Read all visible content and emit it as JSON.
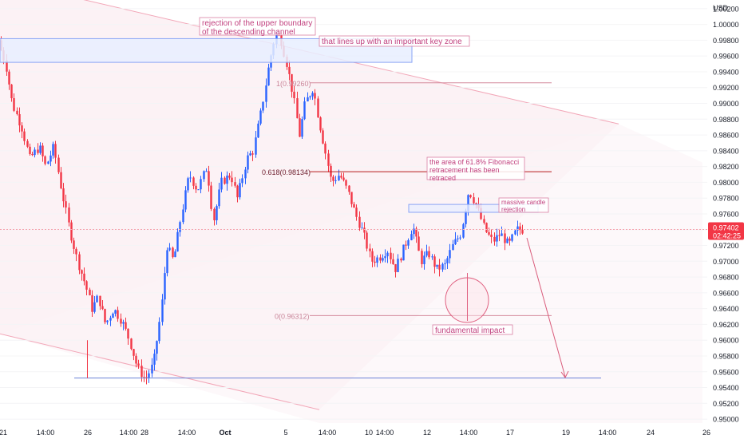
{
  "chart_data": {
    "type": "candlestick",
    "currency_label": "USD",
    "y_ticks": [
      "1.00200",
      "1.00000",
      "0.99800",
      "0.99600",
      "0.99400",
      "0.99200",
      "0.99000",
      "0.98800",
      "0.98600",
      "0.98400",
      "0.98200",
      "0.98000",
      "0.97800",
      "0.97600",
      "0.97400",
      "0.97200",
      "0.97000",
      "0.96800",
      "0.96600",
      "0.96400",
      "0.96200",
      "0.96000",
      "0.95800",
      "0.95600",
      "0.95400",
      "0.95200",
      "0.95000"
    ],
    "ylim": [
      0.9492,
      1.0034
    ],
    "x_ticks": [
      "21",
      "14:00",
      "26",
      "14:00",
      "28",
      "14:00",
      "Oct",
      "5",
      "14:00",
      "10",
      "14:00",
      "12",
      "14:00",
      "17",
      "19",
      "14:00",
      "24",
      "26"
    ],
    "current_price": {
      "value": 0.97402,
      "label": "0.97402",
      "countdown": "02:42:25",
      "color": "#f23645"
    },
    "fib_levels": [
      {
        "label": "1(0.99260)",
        "value": 0.9926
      },
      {
        "label": "0.618(0.98134)",
        "value": 0.98134
      },
      {
        "label": "0(0.96312)",
        "value": 0.96312
      }
    ],
    "support_level": {
      "value": 0.9552
    },
    "channel": {
      "upper": [
        [
          0,
          1.0056
        ],
        [
          775,
          0.9874
        ]
      ],
      "lower": [
        [
          0,
          0.9608
        ],
        [
          400,
          0.9512
        ]
      ]
    },
    "key_zone": {
      "top": 0.9982,
      "bottom": 0.9952
    },
    "rejection_zone": {
      "top": 0.9772,
      "bottom": 0.9762
    },
    "candles": [],
    "annotations": [
      {
        "text": "rejection of the upper boundary\nof the descending channel"
      },
      {
        "text": "that lines up with an important key zone"
      },
      {
        "text": "the area of 61.8% Fibonacci\nretracement has been\nretraced"
      },
      {
        "text": "massive candle\nrejection"
      },
      {
        "text": "fundamental impact"
      }
    ],
    "colors": {
      "up": "#2962ff",
      "down": "#f23645",
      "annotation": "#c2427f",
      "zone": "#2962ff",
      "fib": "#b71c1c"
    }
  }
}
